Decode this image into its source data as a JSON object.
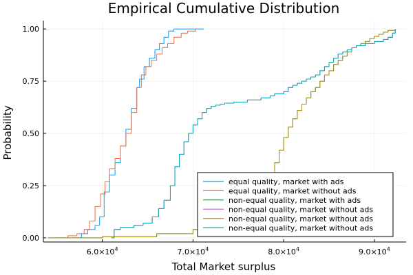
{
  "chart_data": {
    "type": "line",
    "title": "Empirical Cumulative Distribution",
    "xlabel": "Total Market surplus",
    "ylabel": "Probability",
    "xlim": [
      53500,
      93500
    ],
    "ylim": [
      -0.02,
      1.04
    ],
    "grid": true,
    "legend_position": "bottom-right",
    "x_ticks": [
      {
        "value": 60000,
        "mantissa": "6.0×10",
        "exp": "4"
      },
      {
        "value": 70000,
        "mantissa": "7.0×10",
        "exp": "4"
      },
      {
        "value": 80000,
        "mantissa": "8.0×10",
        "exp": "4"
      },
      {
        "value": 90000,
        "mantissa": "9.0×10",
        "exp": "4"
      }
    ],
    "y_ticks": [
      {
        "value": 0.0,
        "label": "0.00"
      },
      {
        "value": 0.25,
        "label": "0.25"
      },
      {
        "value": 0.5,
        "label": "0.50"
      },
      {
        "value": 0.75,
        "label": "0.75"
      },
      {
        "value": 1.0,
        "label": "1.00"
      }
    ],
    "series": [
      {
        "name": "equal quality, market with ads",
        "color": "#009AFA",
        "x": [
          57000,
          57700,
          58400,
          59200,
          59700,
          60200,
          60800,
          61400,
          62000,
          62600,
          63200,
          63800,
          64100,
          64600,
          65200,
          65800,
          66300,
          66800,
          67300,
          67900,
          68600,
          69300,
          70000,
          71200
        ],
        "y": [
          0.0,
          0.02,
          0.04,
          0.06,
          0.1,
          0.22,
          0.3,
          0.36,
          0.44,
          0.52,
          0.62,
          0.72,
          0.76,
          0.82,
          0.86,
          0.9,
          0.93,
          0.96,
          0.99,
          1.0,
          1.0,
          1.0,
          1.0,
          1.0
        ]
      },
      {
        "name": "equal quality, market without ads",
        "color": "#E36F47",
        "x": [
          55300,
          56200,
          57200,
          58000,
          58600,
          59200,
          59800,
          60300,
          60800,
          61400,
          62000,
          62600,
          63200,
          63800,
          64300,
          64800,
          65400,
          66000,
          66600,
          67200,
          67900,
          68700,
          69400,
          70300
        ],
        "y": [
          0.0,
          0.01,
          0.02,
          0.04,
          0.08,
          0.15,
          0.21,
          0.27,
          0.33,
          0.38,
          0.44,
          0.5,
          0.6,
          0.72,
          0.78,
          0.82,
          0.85,
          0.88,
          0.91,
          0.93,
          0.96,
          0.98,
          0.99,
          1.0
        ]
      },
      {
        "name": "non-equal quality, market with ads",
        "color": "#3EA44E",
        "x": [
          54000,
          60000,
          66000,
          70000,
          74000,
          76000,
          77500,
          78500,
          79000,
          79500,
          80000,
          80500,
          81000,
          81500,
          82000,
          82500,
          83000,
          83500,
          84000,
          84500,
          85000,
          85500,
          86000,
          86500,
          87000,
          87500,
          88000,
          88500,
          89000,
          89500,
          90000,
          90500,
          91000,
          91500,
          92300
        ],
        "y": [
          0.0,
          0.005,
          0.02,
          0.04,
          0.07,
          0.12,
          0.22,
          0.3,
          0.36,
          0.42,
          0.48,
          0.53,
          0.57,
          0.61,
          0.64,
          0.67,
          0.7,
          0.72,
          0.75,
          0.78,
          0.8,
          0.83,
          0.85,
          0.87,
          0.89,
          0.91,
          0.92,
          0.93,
          0.94,
          0.955,
          0.965,
          0.975,
          0.985,
          0.993,
          1.0
        ]
      },
      {
        "name": "non-equal quality, market without ads",
        "color": "#C271D2",
        "x": [
          61000,
          61300,
          62000,
          63500,
          64500,
          65500,
          66200,
          66800,
          67500,
          68000,
          68500,
          69000,
          69500,
          70000,
          70500,
          71000,
          71500,
          72000,
          72500,
          73000,
          73500,
          74500,
          76000,
          77500,
          78500,
          79000,
          79500,
          80000,
          80500,
          81000,
          81500,
          82000,
          82500,
          83000,
          83500,
          84000,
          84500,
          85000,
          85500,
          86000,
          86500,
          87000,
          87500,
          88000,
          88500,
          89000,
          89500,
          90000,
          90500,
          91000,
          91500,
          92000,
          92300
        ],
        "y": [
          0.0,
          0.04,
          0.05,
          0.06,
          0.07,
          0.1,
          0.14,
          0.18,
          0.25,
          0.34,
          0.4,
          0.46,
          0.5,
          0.54,
          0.57,
          0.6,
          0.62,
          0.63,
          0.635,
          0.64,
          0.645,
          0.65,
          0.66,
          0.67,
          0.68,
          0.69,
          0.69,
          0.7,
          0.72,
          0.73,
          0.74,
          0.75,
          0.76,
          0.77,
          0.78,
          0.8,
          0.82,
          0.84,
          0.86,
          0.88,
          0.89,
          0.9,
          0.91,
          0.92,
          0.92,
          0.93,
          0.93,
          0.94,
          0.94,
          0.95,
          0.96,
          0.98,
          0.99
        ]
      },
      {
        "name": "non-equal quality, market without ads",
        "color": "#AC8D18",
        "x": [
          54000,
          60000,
          66000,
          70000,
          74000,
          76000,
          77500,
          78500,
          79000,
          79500,
          80000,
          80500,
          81000,
          81500,
          82000,
          82500,
          83000,
          83500,
          84000,
          84500,
          85000,
          85500,
          86000,
          86500,
          87000,
          87500,
          88000,
          88500,
          89000,
          89500,
          90000,
          90500,
          91000,
          91500,
          92300
        ],
        "y": [
          0.0,
          0.005,
          0.02,
          0.04,
          0.07,
          0.12,
          0.22,
          0.3,
          0.36,
          0.42,
          0.48,
          0.53,
          0.57,
          0.61,
          0.64,
          0.67,
          0.7,
          0.72,
          0.75,
          0.78,
          0.8,
          0.83,
          0.85,
          0.87,
          0.89,
          0.91,
          0.92,
          0.93,
          0.94,
          0.955,
          0.965,
          0.975,
          0.985,
          0.993,
          1.0
        ]
      },
      {
        "name": "non-equal quality, market without ads",
        "color": "#00A9AD",
        "x": [
          61000,
          61300,
          62000,
          63500,
          64500,
          65500,
          66200,
          66800,
          67500,
          68000,
          68500,
          69000,
          69500,
          70000,
          70500,
          71000,
          71500,
          72000,
          72500,
          73000,
          73500,
          74500,
          76000,
          77500,
          78500,
          79000,
          79500,
          80000,
          80500,
          81000,
          81500,
          82000,
          82500,
          83000,
          83500,
          84000,
          84500,
          85000,
          85500,
          86000,
          86500,
          87000,
          87500,
          88000,
          88500,
          89000,
          89500,
          90000,
          90500,
          91000,
          91500,
          92000,
          92300
        ],
        "y": [
          0.0,
          0.04,
          0.05,
          0.06,
          0.07,
          0.1,
          0.14,
          0.18,
          0.25,
          0.34,
          0.4,
          0.46,
          0.5,
          0.54,
          0.57,
          0.6,
          0.62,
          0.63,
          0.635,
          0.64,
          0.645,
          0.65,
          0.66,
          0.67,
          0.68,
          0.69,
          0.69,
          0.7,
          0.72,
          0.73,
          0.74,
          0.75,
          0.76,
          0.77,
          0.78,
          0.8,
          0.82,
          0.84,
          0.86,
          0.88,
          0.89,
          0.9,
          0.91,
          0.92,
          0.92,
          0.93,
          0.93,
          0.94,
          0.94,
          0.95,
          0.96,
          0.98,
          1.0
        ]
      }
    ]
  }
}
